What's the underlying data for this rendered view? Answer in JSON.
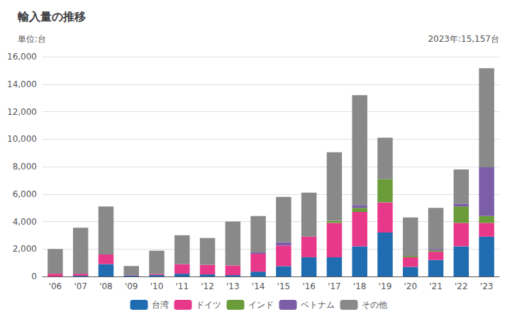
{
  "chart_data": {
    "type": "bar",
    "title": "輸入量の推移",
    "ylabel": "単位:台",
    "annotation": "2023年:15,157台",
    "categories": [
      "'06",
      "'07",
      "'08",
      "'09",
      "'10",
      "'11",
      "'12",
      "'13",
      "'14",
      "'15",
      "'16",
      "'17",
      "'18",
      "'19",
      "'20",
      "'21",
      "'22",
      "'23"
    ],
    "series": [
      {
        "name": "台湾",
        "color": "#1F6CB0",
        "values": [
          0,
          50,
          900,
          80,
          100,
          200,
          150,
          100,
          350,
          750,
          1400,
          1400,
          2200,
          3200,
          700,
          1200,
          2200,
          2900
        ]
      },
      {
        "name": "ドイツ",
        "color": "#E8388A",
        "values": [
          200,
          150,
          700,
          30,
          80,
          700,
          700,
          700,
          1300,
          1500,
          1500,
          2500,
          2500,
          2200,
          700,
          600,
          1700,
          1000
        ]
      },
      {
        "name": "インド",
        "color": "#6A9C3A",
        "values": [
          0,
          0,
          0,
          0,
          0,
          0,
          0,
          0,
          0,
          0,
          0,
          150,
          300,
          1700,
          100,
          100,
          1200,
          500
        ]
      },
      {
        "name": "ベトナム",
        "color": "#7B5EA7",
        "values": [
          0,
          0,
          0,
          0,
          0,
          0,
          0,
          0,
          100,
          250,
          0,
          0,
          200,
          0,
          0,
          100,
          200,
          3550
        ]
      },
      {
        "name": "その他",
        "color": "#898989",
        "values": [
          1800,
          3350,
          3500,
          650,
          1700,
          2100,
          1950,
          3200,
          2650,
          3300,
          3200,
          5000,
          8000,
          3000,
          2800,
          3000,
          2500,
          7207
        ]
      }
    ],
    "stacked": true,
    "ylim": [
      0,
      16000
    ],
    "yticks": [
      0,
      {
        "value": 2000,
        "label": "2,000"
      },
      {
        "value": 4000,
        "label": "4,000"
      },
      {
        "value": 6000,
        "label": "6,000"
      },
      {
        "value": 8000,
        "label": "8,000"
      },
      {
        "value": 10000,
        "label": "10,000"
      },
      {
        "value": 12000,
        "label": "12,000"
      },
      {
        "value": 14000,
        "label": "14,000"
      },
      {
        "value": 16000,
        "label": "16,000"
      }
    ],
    "grid": true,
    "legend": "bottom"
  }
}
